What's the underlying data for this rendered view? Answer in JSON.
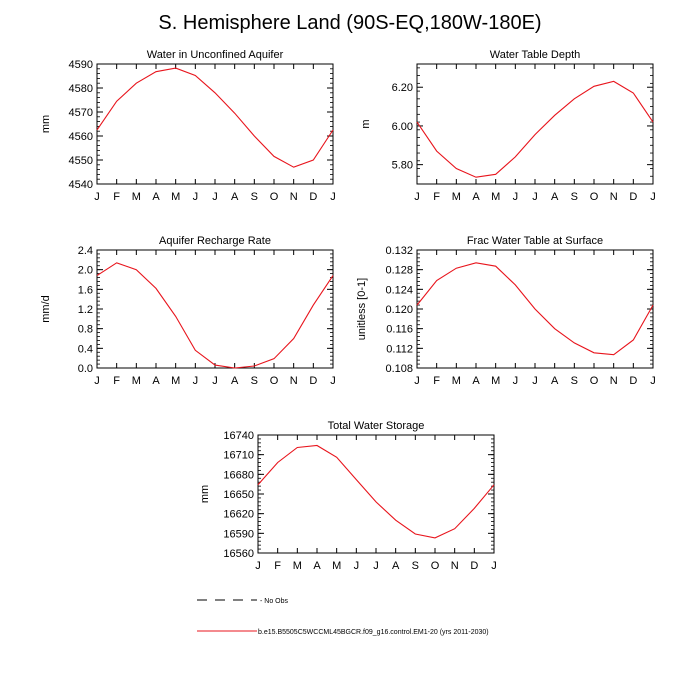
{
  "figure_title": "S. Hemisphere Land (90S-EQ,180W-180E)",
  "months": [
    "J",
    "F",
    "M",
    "A",
    "M",
    "J",
    "J",
    "A",
    "S",
    "O",
    "N",
    "D",
    "J"
  ],
  "legend": {
    "obs_label": "- No Obs",
    "model_label": "b.e15.B5505C5WCCML45BGCR.f09_g16.control.EM1-20 (yrs 2011-2030)",
    "model_color": "#e8141c"
  },
  "chart_data": [
    {
      "type": "line",
      "title": "Water in Unconfined Aquifer",
      "ylabel": "mm",
      "xlabel": "",
      "ylim": [
        4540,
        4590
      ],
      "yticks": [
        "4540",
        "4550",
        "4560",
        "4570",
        "4580",
        "4590"
      ],
      "categories": [
        "J",
        "F",
        "M",
        "A",
        "M",
        "J",
        "J",
        "A",
        "S",
        "O",
        "N",
        "D",
        "J"
      ],
      "series": [
        {
          "name": "model",
          "values": [
            4562.5,
            4574.5,
            4582.0,
            4586.8,
            4588.3,
            4585.2,
            4578.0,
            4569.5,
            4560.0,
            4551.5,
            4547.0,
            4550.0,
            4562.5
          ]
        }
      ]
    },
    {
      "type": "line",
      "title": "Water Table Depth",
      "ylabel": "m",
      "xlabel": "",
      "ylim": [
        5.7,
        6.32
      ],
      "yticks": [
        "5.80",
        "6.00",
        "6.20"
      ],
      "categories": [
        "J",
        "F",
        "M",
        "A",
        "M",
        "J",
        "J",
        "A",
        "S",
        "O",
        "N",
        "D",
        "J"
      ],
      "series": [
        {
          "name": "model",
          "values": [
            6.02,
            5.87,
            5.78,
            5.735,
            5.75,
            5.84,
            5.955,
            6.055,
            6.14,
            6.205,
            6.23,
            6.17,
            6.02
          ]
        }
      ]
    },
    {
      "type": "line",
      "title": "Aquifer Recharge Rate",
      "ylabel": "mm/d",
      "xlabel": "",
      "ylim": [
        0.0,
        2.4
      ],
      "yticks": [
        "0.0",
        "0.4",
        "0.8",
        "1.2",
        "1.6",
        "2.0",
        "2.4"
      ],
      "categories": [
        "J",
        "F",
        "M",
        "A",
        "M",
        "J",
        "J",
        "A",
        "S",
        "O",
        "N",
        "D",
        "J"
      ],
      "series": [
        {
          "name": "model",
          "values": [
            1.88,
            2.14,
            2.0,
            1.62,
            1.05,
            0.36,
            0.06,
            0.0,
            0.04,
            0.19,
            0.6,
            1.28,
            1.88
          ]
        }
      ]
    },
    {
      "type": "line",
      "title": "Frac Water Table at Surface",
      "ylabel": "unitless [0-1]",
      "xlabel": "",
      "ylim": [
        0.108,
        0.132
      ],
      "yticks": [
        "0.108",
        "0.112",
        "0.116",
        "0.120",
        "0.124",
        "0.128",
        "0.132"
      ],
      "categories": [
        "J",
        "F",
        "M",
        "A",
        "M",
        "J",
        "J",
        "A",
        "S",
        "O",
        "N",
        "D",
        "J"
      ],
      "series": [
        {
          "name": "model",
          "values": [
            0.1208,
            0.1258,
            0.1283,
            0.1294,
            0.1287,
            0.1249,
            0.12,
            0.116,
            0.1131,
            0.1111,
            0.1107,
            0.1137,
            0.1208
          ]
        }
      ]
    },
    {
      "type": "line",
      "title": "Total Water Storage",
      "ylabel": "mm",
      "xlabel": "",
      "ylim": [
        16560,
        16740
      ],
      "yticks": [
        "16560",
        "16590",
        "16620",
        "16650",
        "16680",
        "16710",
        "16740"
      ],
      "categories": [
        "J",
        "F",
        "M",
        "A",
        "M",
        "J",
        "J",
        "A",
        "S",
        "O",
        "N",
        "D",
        "J"
      ],
      "series": [
        {
          "name": "model",
          "values": [
            16664,
            16698,
            16721,
            16724,
            16706,
            16672,
            16638,
            16610,
            16589,
            16583,
            16597,
            16628,
            16664
          ]
        }
      ]
    }
  ]
}
